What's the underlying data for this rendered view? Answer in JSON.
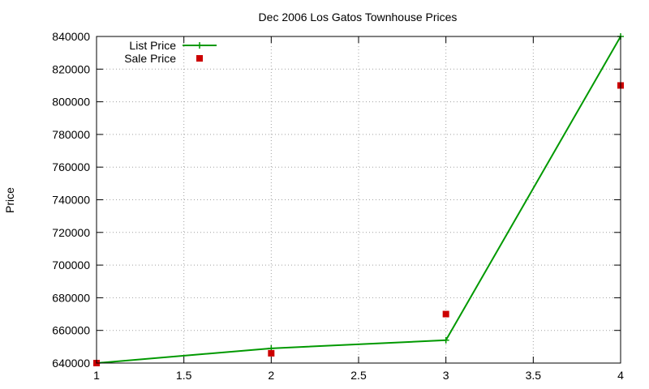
{
  "chart_data": {
    "type": "line",
    "title": "Dec 2006 Los Gatos Townhouse Prices",
    "xlabel": "",
    "ylabel": "Price",
    "xlim": [
      1,
      4
    ],
    "ylim": [
      640000,
      840000
    ],
    "x_ticks": [
      "1",
      "1.5",
      "2",
      "2.5",
      "3",
      "3.5",
      "4"
    ],
    "y_ticks": [
      "640000",
      "660000",
      "680000",
      "700000",
      "720000",
      "740000",
      "760000",
      "780000",
      "800000",
      "820000",
      "840000"
    ],
    "grid": true,
    "legend_position": "top-left",
    "series": [
      {
        "name": "List Price",
        "style": "linespoints",
        "marker": "plus",
        "color": "#009900",
        "x": [
          1,
          2,
          3,
          4
        ],
        "y": [
          640000,
          649000,
          654000,
          840000
        ]
      },
      {
        "name": "Sale Price",
        "style": "points",
        "marker": "square",
        "color": "#cc0000",
        "x": [
          1,
          2,
          3,
          4
        ],
        "y": [
          640000,
          646000,
          670000,
          810000
        ]
      }
    ]
  }
}
